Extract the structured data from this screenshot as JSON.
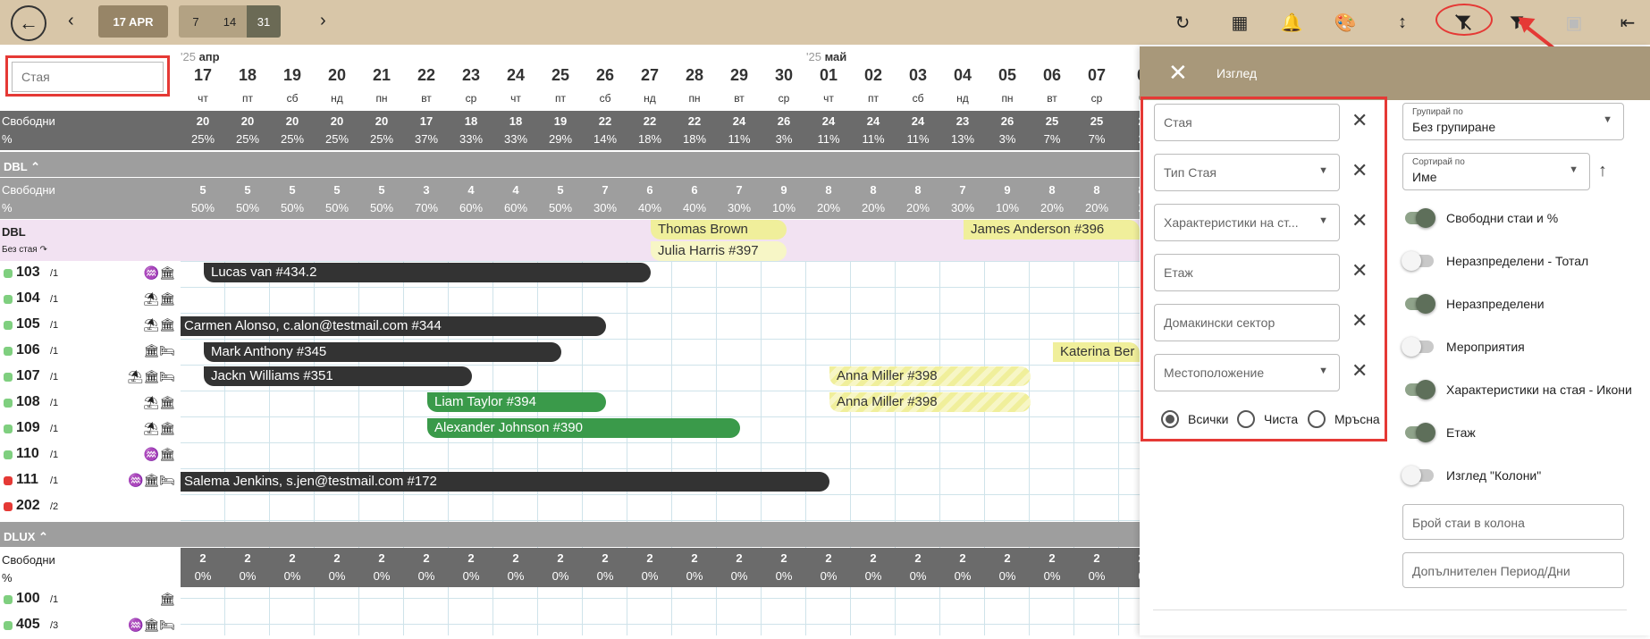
{
  "toolbar": {
    "date_button": "17 APR",
    "ranges": [
      "7",
      "14",
      "31"
    ],
    "icons": [
      "back-icon",
      "chevron-left-icon",
      "chevron-right-icon",
      "refresh-icon",
      "columns-icon",
      "notification-add-icon",
      "palette-icon",
      "vertical-resize-icon",
      "filter-off-icon",
      "filter-icon",
      "focus-icon",
      "sidebar-toggle-icon"
    ]
  },
  "search": {
    "placeholder": "Стая"
  },
  "calendar": {
    "months": [
      {
        "year": "'25",
        "name": "апр"
      },
      {
        "year": "'25",
        "name": "май"
      }
    ],
    "days": [
      {
        "n": "17",
        "d": "чт"
      },
      {
        "n": "18",
        "d": "пт"
      },
      {
        "n": "19",
        "d": "сб"
      },
      {
        "n": "20",
        "d": "нд"
      },
      {
        "n": "21",
        "d": "пн"
      },
      {
        "n": "22",
        "d": "вт"
      },
      {
        "n": "23",
        "d": "ср"
      },
      {
        "n": "24",
        "d": "чт"
      },
      {
        "n": "25",
        "d": "пт"
      },
      {
        "n": "26",
        "d": "сб"
      },
      {
        "n": "27",
        "d": "нд"
      },
      {
        "n": "28",
        "d": "пн"
      },
      {
        "n": "29",
        "d": "вт"
      },
      {
        "n": "30",
        "d": "ср"
      },
      {
        "n": "01",
        "d": "чт"
      },
      {
        "n": "02",
        "d": "пт"
      },
      {
        "n": "03",
        "d": "сб"
      },
      {
        "n": "04",
        "d": "нд"
      },
      {
        "n": "05",
        "d": "пн"
      },
      {
        "n": "06",
        "d": "вт"
      },
      {
        "n": "07",
        "d": "ср"
      },
      {
        "n": "0",
        "d": "ч"
      }
    ],
    "free_label": "Свободни",
    "pct_label": "%",
    "totals": {
      "values": [
        "20",
        "20",
        "20",
        "20",
        "20",
        "17",
        "18",
        "18",
        "19",
        "22",
        "22",
        "22",
        "24",
        "26",
        "24",
        "24",
        "24",
        "23",
        "26",
        "25",
        "25",
        "2"
      ],
      "pcts": [
        "25%",
        "25%",
        "25%",
        "25%",
        "25%",
        "37%",
        "33%",
        "33%",
        "29%",
        "14%",
        "18%",
        "18%",
        "11%",
        "3%",
        "11%",
        "11%",
        "11%",
        "13%",
        "3%",
        "7%",
        "7%",
        "2"
      ]
    },
    "sections": [
      {
        "title": "DBL",
        "values": [
          "5",
          "5",
          "5",
          "5",
          "5",
          "3",
          "4",
          "4",
          "5",
          "7",
          "6",
          "6",
          "7",
          "9",
          "8",
          "8",
          "8",
          "7",
          "9",
          "8",
          "8",
          "8"
        ],
        "pcts": [
          "50%",
          "50%",
          "50%",
          "50%",
          "50%",
          "70%",
          "60%",
          "60%",
          "50%",
          "30%",
          "40%",
          "40%",
          "30%",
          "10%",
          "20%",
          "20%",
          "20%",
          "30%",
          "10%",
          "20%",
          "20%",
          "2"
        ],
        "unassigned_title": "DBL",
        "unassigned_sub": "Без стая",
        "rooms": [
          {
            "num": "103",
            "sub": "/1",
            "icons": "♒🏛",
            "status": "green"
          },
          {
            "num": "104",
            "sub": "/1",
            "icons": "⛱🏛",
            "status": "green"
          },
          {
            "num": "105",
            "sub": "/1",
            "icons": "⛱🏛",
            "status": "green"
          },
          {
            "num": "106",
            "sub": "/1",
            "icons": "🏛🛏",
            "status": "green"
          },
          {
            "num": "107",
            "sub": "/1",
            "icons": "⛱🏛🛏",
            "status": "green"
          },
          {
            "num": "108",
            "sub": "/1",
            "icons": "⛱🏛",
            "status": "green"
          },
          {
            "num": "109",
            "sub": "/1",
            "icons": "⛱🏛",
            "status": "green"
          },
          {
            "num": "110",
            "sub": "/1",
            "icons": "♒🏛",
            "status": "green"
          },
          {
            "num": "111",
            "sub": "/1",
            "icons": "♒🏛🛏",
            "status": "red"
          },
          {
            "num": "202",
            "sub": "/2",
            "icons": "",
            "status": "red"
          }
        ]
      },
      {
        "title": "DLUX",
        "values": [
          "2",
          "2",
          "2",
          "2",
          "2",
          "2",
          "2",
          "2",
          "2",
          "2",
          "2",
          "2",
          "2",
          "2",
          "2",
          "2",
          "2",
          "2",
          "2",
          "2",
          "2",
          "2"
        ],
        "pcts": [
          "0%",
          "0%",
          "0%",
          "0%",
          "0%",
          "0%",
          "0%",
          "0%",
          "0%",
          "0%",
          "0%",
          "0%",
          "0%",
          "0%",
          "0%",
          "0%",
          "0%",
          "0%",
          "0%",
          "0%",
          "0%",
          "0"
        ],
        "rooms": [
          {
            "num": "100",
            "sub": "/1",
            "icons": "🏛",
            "status": "green"
          },
          {
            "num": "405",
            "sub": "/3",
            "icons": "♒🏛🛏",
            "status": "green"
          }
        ]
      }
    ],
    "bookings": [
      "Thomas Brown",
      "Julia Harris #397",
      "James Anderson #396",
      "Lucas van #434.2",
      "Carmen Alonso, c.alon@testmail.com #344",
      "Mark Anthony #345",
      "Katerina Ber",
      "Jackn Williams #351",
      "Anna Miller #398",
      "Liam Taylor #394",
      "Anna Miller #398",
      "Alexander Johnson #390",
      "Salema Jenkins, s.jen@testmail.com #172"
    ]
  },
  "panel": {
    "title": "Изглед",
    "filters": [
      "Стая",
      "Тип Стая",
      "Характеристики на ст...",
      "Етаж",
      "Домакински сектор",
      "Местоположение"
    ],
    "radios": [
      "Всички",
      "Чиста",
      "Мръсна"
    ],
    "group_label": "Групирай по",
    "group_value": "Без групиране",
    "sort_label": "Сортирай по",
    "sort_value": "Име",
    "toggles": [
      {
        "label": "Свободни стаи и %",
        "on": true
      },
      {
        "label": "Неразпределени - Тотал",
        "on": false
      },
      {
        "label": "Неразпределени",
        "on": true
      },
      {
        "label": "Мероприятия",
        "on": false
      },
      {
        "label": "Характеристики на стая - Икони",
        "on": true
      },
      {
        "label": "Етаж",
        "on": true
      },
      {
        "label": "Изглед \"Колони\"",
        "on": false
      }
    ],
    "rooms_per_column_placeholder": "Брой стаи в колона",
    "extra_period_placeholder": "Допълнителен Период/Дни"
  }
}
